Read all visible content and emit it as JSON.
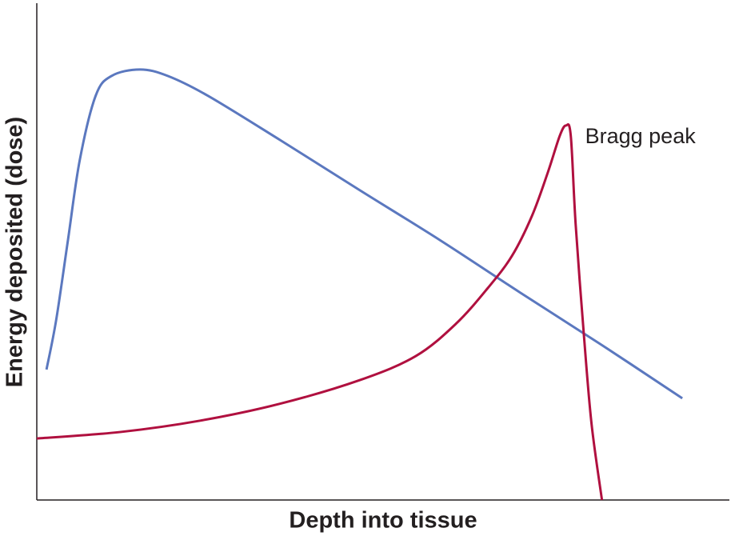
{
  "chart_data": {
    "type": "line",
    "xlabel": "Depth into tissue",
    "ylabel": "Energy deposited (dose)",
    "xlim": [
      0,
      100
    ],
    "ylim": [
      0,
      100
    ],
    "annotations": [
      {
        "text": "Bragg peak"
      }
    ],
    "series": [
      {
        "color": "#5b78bf",
        "x": [
          1.4,
          2.8,
          4.5,
          6.2,
          8.5,
          10.8,
          14.9,
          18.9,
          24.7,
          35.1,
          46.7,
          58.2,
          69.7,
          81.3,
          93.2
        ],
        "values": [
          26.3,
          36.3,
          52.4,
          68.5,
          81.5,
          85.5,
          86.8,
          85.5,
          81.5,
          72.6,
          62.4,
          52.4,
          41.9,
          31.5,
          20.5
        ]
      },
      {
        "color": "#b0103f",
        "x": [
          0,
          12.0,
          23.6,
          35.1,
          46.7,
          54.7,
          60.5,
          65.1,
          68.6,
          71.5,
          73.8,
          75.5,
          76.4,
          77.1,
          77.8,
          79.0,
          80.1,
          81.6
        ],
        "values": [
          12.4,
          13.7,
          16.0,
          19.4,
          24.2,
          29.0,
          35.5,
          42.7,
          49.2,
          57.3,
          66.1,
          73.4,
          75.5,
          73.4,
          55.6,
          33.1,
          15.3,
          0
        ]
      }
    ]
  }
}
